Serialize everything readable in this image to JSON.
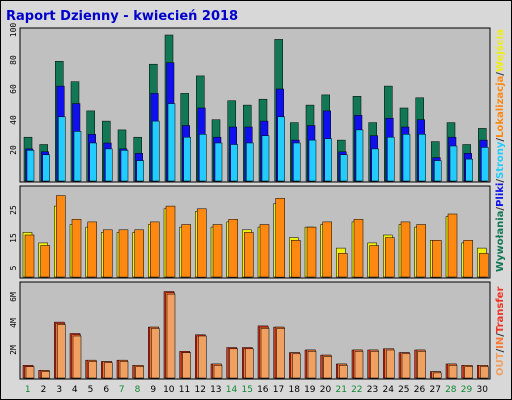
{
  "title": "Raport Dzienny -  kwiecień 2018",
  "chart_data": [
    {
      "type": "bar",
      "panel": "top",
      "categories": [
        "1",
        "2",
        "3",
        "4",
        "5",
        "6",
        "7",
        "8",
        "9",
        "10",
        "11",
        "12",
        "13",
        "14",
        "15",
        "16",
        "17",
        "18",
        "19",
        "20",
        "21",
        "22",
        "23",
        "24",
        "25",
        "26",
        "27",
        "28",
        "29",
        "30"
      ],
      "y_tick_labels": [
        "20",
        "40",
        "60",
        "80",
        "100"
      ],
      "ylim": [
        0,
        100
      ],
      "series": [
        {
          "name": "Wywołania",
          "color": "#117755",
          "values": [
            30,
            25,
            82,
            68,
            48,
            41,
            35,
            30,
            80,
            100,
            60,
            72,
            42,
            55,
            52,
            56,
            97,
            40,
            52,
            59,
            28,
            58,
            40,
            65,
            50,
            57,
            27,
            40,
            25,
            36
          ]
        },
        {
          "name": "Pliki",
          "color": "#1010ee",
          "values": [
            22,
            20,
            65,
            53,
            32,
            26,
            22,
            19,
            60,
            81,
            38,
            50,
            30,
            37,
            37,
            41,
            63,
            28,
            38,
            48,
            20,
            45,
            31,
            43,
            37,
            42,
            16,
            30,
            19,
            28
          ]
        },
        {
          "name": "Strony",
          "color": "#22ccff",
          "values": [
            21,
            18,
            44,
            34,
            26,
            22,
            21,
            14,
            41,
            53,
            30,
            32,
            26,
            25,
            26,
            31,
            44,
            26,
            28,
            29,
            18,
            35,
            22,
            30,
            32,
            32,
            14,
            24,
            15,
            23
          ]
        }
      ]
    },
    {
      "type": "bar",
      "panel": "middle",
      "categories": [
        "1",
        "2",
        "3",
        "4",
        "5",
        "6",
        "7",
        "8",
        "9",
        "10",
        "11",
        "12",
        "13",
        "14",
        "15",
        "16",
        "17",
        "18",
        "19",
        "20",
        "21",
        "22",
        "23",
        "24",
        "25",
        "26",
        "27",
        "28",
        "29",
        "30"
      ],
      "y_tick_labels": [
        "5",
        "15",
        "25"
      ],
      "series": [
        {
          "name": "Wejścia",
          "color": "#eeee11",
          "values": [
            17,
            13,
            27,
            20,
            19,
            17,
            17,
            17,
            20,
            26,
            19,
            25,
            19,
            21,
            18,
            19,
            28,
            15,
            19,
            20,
            11,
            21,
            13,
            16,
            20,
            19,
            14,
            23,
            13,
            11
          ]
        },
        {
          "name": "Lokalizacja",
          "color": "#ff8811",
          "values": [
            16,
            12,
            31,
            22,
            21,
            18,
            18,
            18,
            21,
            27,
            20,
            26,
            20,
            22,
            17,
            20,
            30,
            14,
            19,
            21,
            9,
            22,
            12,
            15,
            21,
            20,
            14,
            24,
            14,
            9
          ]
        }
      ]
    },
    {
      "type": "bar",
      "panel": "bottom",
      "categories": [
        "1",
        "2",
        "3",
        "4",
        "5",
        "6",
        "7",
        "8",
        "9",
        "10",
        "11",
        "12",
        "13",
        "14",
        "15",
        "16",
        "17",
        "18",
        "19",
        "20",
        "21",
        "22",
        "23",
        "24",
        "25",
        "26",
        "27",
        "28",
        "29",
        "30"
      ],
      "y_tick_labels": [
        "2M",
        "4M",
        "6M"
      ],
      "series": [
        {
          "name": "Transfer",
          "color": "#ee3322",
          "values": [
            1.0,
            0.6,
            4.4,
            3.5,
            1.4,
            1.3,
            1.4,
            1.0,
            4.0,
            6.8,
            2.1,
            3.4,
            1.1,
            2.4,
            2.4,
            4.1,
            4.0,
            2.0,
            2.2,
            1.8,
            1.1,
            2.2,
            2.2,
            2.3,
            2.0,
            2.2,
            0.5,
            1.1,
            1.0,
            1.0
          ]
        },
        {
          "name": "IN",
          "color": "#ff7733",
          "values": [
            0.9,
            0.6,
            4.3,
            3.4,
            1.4,
            1.3,
            1.4,
            1.0,
            4.0,
            6.7,
            2.0,
            3.3,
            1.1,
            2.3,
            2.3,
            4.0,
            4.0,
            2.0,
            2.2,
            1.8,
            1.1,
            2.2,
            2.2,
            2.3,
            2.0,
            2.2,
            0.5,
            1.1,
            1.0,
            1.0
          ]
        },
        {
          "name": "OUT",
          "color": "#f0a060",
          "values": [
            0.9,
            0.5,
            4.2,
            3.3,
            1.3,
            1.2,
            1.3,
            0.9,
            3.9,
            6.6,
            2.0,
            3.3,
            1.0,
            2.3,
            2.3,
            3.9,
            3.9,
            1.9,
            2.1,
            1.7,
            1.0,
            2.1,
            2.1,
            2.2,
            1.9,
            2.1,
            0.4,
            1.0,
            0.9,
            0.9
          ]
        }
      ]
    }
  ],
  "right_legend": {
    "top": [
      {
        "text": "Wywołania",
        "color": "#117755"
      },
      {
        "text": "/",
        "color": "#333333"
      },
      {
        "text": "Pliki",
        "color": "#1010ee"
      },
      {
        "text": "/",
        "color": "#333333"
      },
      {
        "text": "Strony",
        "color": "#22ccff"
      },
      {
        "text": "/",
        "color": "#333333"
      },
      {
        "text": "Lokalizacja",
        "color": "#ff8811"
      },
      {
        "text": "/",
        "color": "#333333"
      },
      {
        "text": "Wejścia",
        "color": "#eeee11"
      }
    ],
    "bottom": [
      {
        "text": "OUT",
        "color": "#f0a060"
      },
      {
        "text": "/",
        "color": "#333333"
      },
      {
        "text": "IN",
        "color": "#ff7733"
      },
      {
        "text": "/",
        "color": "#333333"
      },
      {
        "text": "Transfer",
        "color": "#ee3322"
      }
    ]
  },
  "weekend_days": [
    "1",
    "7",
    "8",
    "14",
    "15",
    "21",
    "22",
    "28",
    "29"
  ],
  "colors": {
    "background": "#d8d8d8",
    "panel": "#c0c0c0",
    "title": "#0000cc",
    "label_normal": "#000000",
    "label_weekend": "#118833"
  }
}
